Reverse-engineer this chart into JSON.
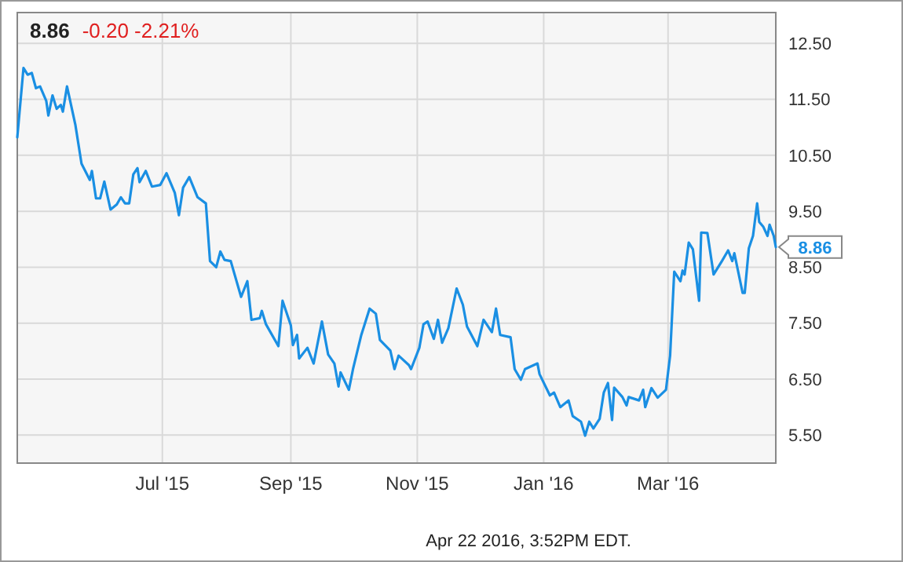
{
  "chart_data": {
    "type": "line",
    "title": "8.86",
    "subtitle": "-0.20 -2.21%",
    "x": [
      "2015-04-22",
      "2015-04-25",
      "2015-04-27",
      "2015-04-29",
      "2015-05-01",
      "2015-05-03",
      "2015-05-06",
      "2015-05-07",
      "2015-05-09",
      "2015-05-11",
      "2015-05-13",
      "2015-05-14",
      "2015-05-16",
      "2015-05-20",
      "2015-05-23",
      "2015-05-27",
      "2015-05-28",
      "2015-05-30",
      "2015-06-01",
      "2015-06-03",
      "2015-06-06",
      "2015-06-09",
      "2015-06-11",
      "2015-06-13",
      "2015-06-15",
      "2015-06-17",
      "2015-06-19",
      "2015-06-20",
      "2015-06-23",
      "2015-06-26",
      "2015-06-30",
      "2015-07-03",
      "2015-07-07",
      "2015-07-09",
      "2015-07-11",
      "2015-07-14",
      "2015-07-18",
      "2015-07-22",
      "2015-07-24",
      "2015-07-27",
      "2015-07-29",
      "2015-07-31",
      "2015-08-03",
      "2015-08-08",
      "2015-08-11",
      "2015-08-13",
      "2015-08-17",
      "2015-08-18",
      "2015-08-20",
      "2015-08-26",
      "2015-08-28",
      "2015-09-01",
      "2015-09-02",
      "2015-09-04",
      "2015-09-05",
      "2015-09-09",
      "2015-09-12",
      "2015-09-16",
      "2015-09-19",
      "2015-09-22",
      "2015-09-24",
      "2015-09-25",
      "2015-09-29",
      "2015-10-01",
      "2015-10-05",
      "2015-10-09",
      "2015-10-12",
      "2015-10-14",
      "2015-10-19",
      "2015-10-21",
      "2015-10-23",
      "2015-10-28",
      "2015-10-29",
      "2015-11-02",
      "2015-11-04",
      "2015-11-06",
      "2015-11-09",
      "2015-11-11",
      "2015-11-13",
      "2015-11-16",
      "2015-11-20",
      "2015-11-23",
      "2015-11-25",
      "2015-11-30",
      "2015-12-03",
      "2015-12-07",
      "2015-12-09",
      "2015-12-11",
      "2015-12-16",
      "2015-12-18",
      "2015-12-21",
      "2015-12-23",
      "2015-12-29",
      "2015-12-30",
      "2016-01-04",
      "2016-01-06",
      "2016-01-09",
      "2016-01-13",
      "2016-01-15",
      "2016-01-19",
      "2016-01-21",
      "2016-01-23",
      "2016-01-25",
      "2016-01-28",
      "2016-01-30",
      "2016-02-01",
      "2016-02-03",
      "2016-02-04",
      "2016-02-08",
      "2016-02-10",
      "2016-02-11",
      "2016-02-16",
      "2016-02-18",
      "2016-02-19",
      "2016-02-22",
      "2016-02-25",
      "2016-02-29",
      "2016-03-02",
      "2016-03-04",
      "2016-03-07",
      "2016-03-08",
      "2016-03-09",
      "2016-03-11",
      "2016-03-13",
      "2016-03-16",
      "2016-03-17",
      "2016-03-20",
      "2016-03-23",
      "2016-03-27",
      "2016-03-30",
      "2016-04-01",
      "2016-04-02",
      "2016-04-06",
      "2016-04-07",
      "2016-04-09",
      "2016-04-11",
      "2016-04-13",
      "2016-04-14",
      "2016-04-16",
      "2016-04-18",
      "2016-04-19",
      "2016-04-21",
      "2016-04-22"
    ],
    "series": [
      {
        "color": "#1a8fe3",
        "values": [
          10.82,
          12.06,
          11.94,
          11.97,
          11.7,
          11.73,
          11.47,
          11.21,
          11.57,
          11.33,
          11.4,
          11.28,
          11.73,
          11.05,
          10.35,
          10.06,
          10.22,
          9.73,
          9.73,
          10.03,
          9.53,
          9.62,
          9.75,
          9.64,
          9.64,
          10.16,
          10.27,
          10.02,
          10.22,
          9.94,
          9.97,
          10.18,
          9.83,
          9.43,
          9.92,
          10.11,
          9.75,
          9.64,
          8.61,
          8.5,
          8.78,
          8.63,
          8.61,
          7.97,
          8.25,
          7.56,
          7.59,
          7.72,
          7.48,
          7.09,
          7.9,
          7.46,
          7.11,
          7.29,
          6.87,
          7.06,
          6.78,
          7.53,
          6.94,
          6.78,
          6.37,
          6.62,
          6.31,
          6.68,
          7.29,
          7.76,
          7.67,
          7.2,
          7.01,
          6.68,
          6.92,
          6.75,
          6.68,
          7.06,
          7.48,
          7.53,
          7.22,
          7.56,
          7.15,
          7.41,
          8.12,
          7.83,
          7.44,
          7.09,
          7.56,
          7.34,
          7.76,
          7.29,
          7.25,
          6.68,
          6.49,
          6.68,
          6.78,
          6.59,
          6.21,
          6.26,
          6.0,
          6.12,
          5.84,
          5.74,
          5.49,
          5.74,
          5.62,
          5.79,
          6.26,
          6.43,
          5.77,
          6.35,
          6.18,
          6.03,
          6.18,
          6.12,
          6.31,
          6.0,
          6.34,
          6.17,
          6.31,
          6.92,
          8.42,
          8.25,
          8.44,
          8.37,
          8.94,
          8.82,
          7.9,
          9.12,
          9.11,
          8.37,
          8.61,
          8.8,
          8.61,
          8.75,
          8.04,
          8.04,
          8.84,
          9.06,
          9.64,
          9.31,
          9.22,
          9.06,
          9.26,
          9.06,
          8.86
        ]
      }
    ],
    "xlim": [
      "2015-04-22",
      "2016-04-22"
    ],
    "xticks": [
      {
        "value": "2015-07-01",
        "label": "Jul '15"
      },
      {
        "value": "2015-09-01",
        "label": "Sep '15"
      },
      {
        "value": "2015-11-01",
        "label": "Nov '15"
      },
      {
        "value": "2016-01-01",
        "label": "Jan '16"
      },
      {
        "value": "2016-03-01",
        "label": "Mar '16"
      }
    ],
    "ylim": [
      5.0,
      13.05
    ],
    "yticks": [
      {
        "value": 5.5,
        "label": "5.50"
      },
      {
        "value": 6.5,
        "label": "6.50"
      },
      {
        "value": 7.5,
        "label": "7.50"
      },
      {
        "value": 8.5,
        "label": "8.50"
      },
      {
        "value": 9.5,
        "label": "9.50"
      },
      {
        "value": 10.5,
        "label": "10.50"
      },
      {
        "value": 11.5,
        "label": "11.50"
      },
      {
        "value": 12.5,
        "label": "12.50"
      }
    ],
    "grid": true,
    "marker": "none",
    "line_style": "solid",
    "annotations": [
      {
        "text": "8.86",
        "x": "2016-04-22",
        "y": 8.86
      },
      "Apr 22 2016, 3:52PM EDT."
    ]
  }
}
